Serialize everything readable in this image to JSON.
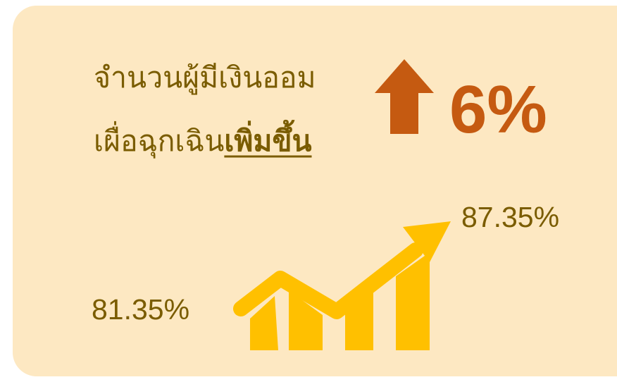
{
  "heading": {
    "line1": "จำนวนผู้มีเงินออม",
    "line2": "เผื่อฉุกเฉิน",
    "emphasis": "เพิ่มขึ้น"
  },
  "change": "6%",
  "end_value": "87.35%",
  "start_value": "81.35%"
}
